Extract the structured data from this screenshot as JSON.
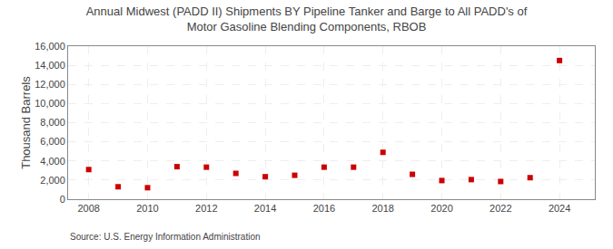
{
  "chart_data": {
    "type": "scatter",
    "title": "Annual Midwest (PADD II) Shipments BY Pipeline Tanker and Barge to All PADD's of\nMotor Gasoline Blending Components, RBOB",
    "ylabel": "Thousand Barrels",
    "annotations": [
      "Source: U.S. Energy Information Administration"
    ],
    "x": [
      2008,
      2009,
      2010,
      2011,
      2012,
      2013,
      2014,
      2015,
      2016,
      2017,
      2018,
      2019,
      2020,
      2021,
      2022,
      2023,
      2024
    ],
    "values": [
      3100,
      1300,
      1200,
      3400,
      3350,
      2700,
      2350,
      2500,
      3350,
      3350,
      4900,
      2600,
      1950,
      2050,
      1850,
      2250,
      14500
    ],
    "color": "#cc0000",
    "marker": "square",
    "xlim": [
      2007.3,
      2025.2
    ],
    "xticks": [
      2008,
      2010,
      2012,
      2014,
      2016,
      2018,
      2020,
      2022,
      2024
    ],
    "ylim": [
      0,
      16000
    ],
    "yticks": [
      0,
      {
        "value": 2000,
        "label": "2,000"
      },
      {
        "value": 4000,
        "label": "4,000"
      },
      {
        "value": 6000,
        "label": "6,000"
      },
      {
        "value": 8000,
        "label": "8,000"
      },
      {
        "value": 10000,
        "label": "10,000"
      },
      {
        "value": 12000,
        "label": "12,000"
      },
      {
        "value": 14000,
        "label": "14,000"
      },
      {
        "value": 16000,
        "label": "16,000"
      }
    ],
    "grid": true
  }
}
